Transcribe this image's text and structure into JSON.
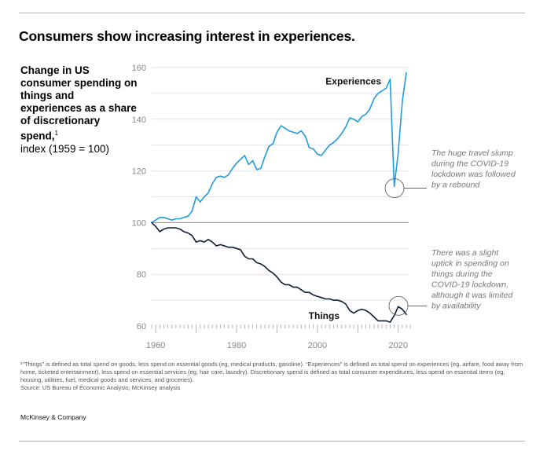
{
  "header": {
    "title": "Consumers show increasing interest in experiences."
  },
  "subtitle": {
    "bold_text": "Change in US consumer spending on things and experiences as a share of discretionary spend,",
    "footnote_marker": "1",
    "units": "index (1959 = 100)"
  },
  "chart_data": {
    "type": "line",
    "title": "Consumers show increasing interest in experiences.",
    "xlabel": "",
    "ylabel": "index (1959 = 100)",
    "xlim": [
      1959,
      2022
    ],
    "ylim": [
      60,
      160
    ],
    "x_ticks": [
      1960,
      1980,
      2000,
      2020
    ],
    "y_ticks": [
      60,
      80,
      100,
      120,
      140,
      160
    ],
    "grid": true,
    "baseline": 100,
    "x": [
      1959,
      1960,
      1961,
      1962,
      1963,
      1964,
      1965,
      1966,
      1967,
      1968,
      1969,
      1970,
      1971,
      1972,
      1973,
      1974,
      1975,
      1976,
      1977,
      1978,
      1979,
      1980,
      1981,
      1982,
      1983,
      1984,
      1985,
      1986,
      1987,
      1988,
      1989,
      1990,
      1991,
      1992,
      1993,
      1994,
      1995,
      1996,
      1997,
      1998,
      1999,
      2000,
      2001,
      2002,
      2003,
      2004,
      2005,
      2006,
      2007,
      2008,
      2009,
      2010,
      2011,
      2012,
      2013,
      2014,
      2015,
      2016,
      2017,
      2018,
      2019,
      2020,
      2021,
      2022
    ],
    "series": [
      {
        "name": "Experiences",
        "color": "#1f9bde",
        "values": [
          100,
          101,
          102,
          102,
          101.5,
          101,
          101.5,
          101.5,
          102,
          102.5,
          104.5,
          110,
          108,
          110,
          111.5,
          115,
          117.5,
          118,
          117.5,
          118.5,
          121,
          123,
          124.5,
          126,
          122.5,
          124,
          120.5,
          121,
          125.5,
          129.5,
          130.5,
          135,
          137.5,
          136.5,
          135.5,
          135,
          134.5,
          135.5,
          133.5,
          129,
          128.5,
          126.5,
          126,
          128,
          130,
          131,
          132.5,
          134.5,
          137,
          140.5,
          140,
          139,
          141,
          142,
          144,
          148,
          150,
          151,
          152,
          155.5,
          114,
          127,
          147,
          158
        ]
      },
      {
        "name": "Things",
        "color": "#0b1f35",
        "values": [
          100,
          98.5,
          96.5,
          97.5,
          98,
          98,
          98,
          97.5,
          96.5,
          96,
          95,
          92.5,
          93,
          92.5,
          93.5,
          92.5,
          91,
          91.5,
          91,
          90.5,
          90.5,
          90,
          89.5,
          87,
          86,
          86,
          84.5,
          84,
          83,
          81.5,
          80.5,
          79,
          77,
          76,
          76,
          75,
          75,
          74,
          73,
          73,
          72,
          71.5,
          71,
          70.5,
          70.5,
          70,
          70,
          69.5,
          68.5,
          66,
          65,
          66,
          66.5,
          66,
          65,
          63.5,
          62,
          62,
          62,
          61.5,
          64,
          67.5,
          66.5,
          64.5
        ]
      }
    ],
    "annotations": [
      {
        "target": "Experiences",
        "year": 2020,
        "text_lines": [
          "The huge travel slump",
          "during the COVID-19",
          "lockdown was followed",
          "by a rebound"
        ]
      },
      {
        "target": "Things",
        "year": 2021,
        "text_lines": [
          "There was a slight",
          "uptick in spending on",
          "things during the",
          "COVID-19 lockdown,",
          "although it was limited",
          "by availability"
        ]
      }
    ]
  },
  "footnote": {
    "definitions": "¹“Things” is defined as total spend on goods, less spend on essential goods (eg, medical products, gasoline). “Experiences” is defined as total spend on experiences (eg, airfare, food away from home, ticketed entertainment), less spend on essential services (eg, hair care, laundry). Discretionary spend is defined as total consumer expenditures, less spend on essential items (eg, housing, utilities, fuel, medical goods and services, and groceries).",
    "source": "Source: US Bureau of Economic Analysis; McKinsey analysis"
  },
  "brand": "McKinsey & Company"
}
